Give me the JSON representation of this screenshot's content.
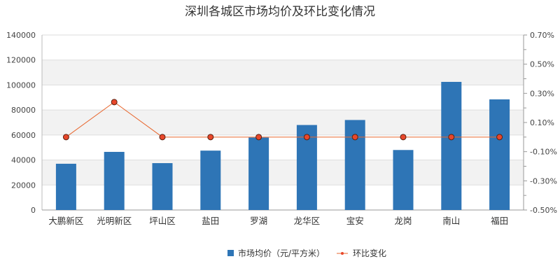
{
  "chart_data": {
    "type": "bar+line",
    "title": "深圳各城区市场均价及环比变化情况",
    "categories": [
      "大鹏新区",
      "光明新区",
      "坪山区",
      "盐田",
      "罗湖",
      "龙华区",
      "宝安",
      "龙岗",
      "南山",
      "福田"
    ],
    "series": [
      {
        "name": "市场均价（元/平方米）",
        "type": "bar",
        "axis": "left",
        "color": "#2e75b6",
        "values": [
          37000,
          46500,
          37500,
          47500,
          58000,
          68000,
          72000,
          48000,
          102500,
          88500
        ]
      },
      {
        "name": "环比变化",
        "type": "line",
        "axis": "right",
        "color": "#e8672f",
        "marker_fill": "#e8472a",
        "values": [
          0.0,
          0.24,
          0.0,
          0.0,
          0.0,
          0.0,
          0.0,
          0.0,
          0.0,
          0.0
        ]
      }
    ],
    "y_left": {
      "ylim": [
        0,
        140000
      ],
      "ticks": [
        "0",
        "20000",
        "40000",
        "60000",
        "80000",
        "100000",
        "120000",
        "140000"
      ]
    },
    "y_right": {
      "ylim": [
        -0.5,
        0.7
      ],
      "ticks": [
        "-0.50%",
        "-0.30%",
        "-0.10%",
        "0.10%",
        "0.30%",
        "0.50%",
        "0.70%"
      ]
    },
    "grid": true,
    "legend": "bottom-center"
  }
}
